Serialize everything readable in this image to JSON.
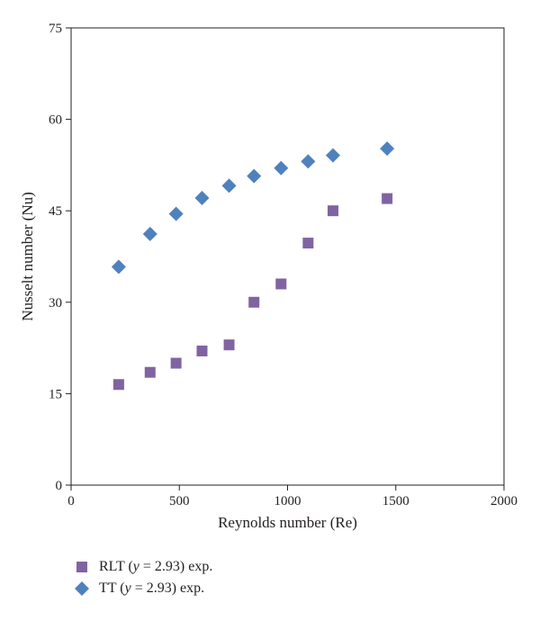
{
  "chart_data": {
    "type": "scatter",
    "xlabel": "Reynolds number (Re)",
    "ylabel": "Nusselt number (Nu)",
    "xlim": [
      0,
      2000
    ],
    "ylim": [
      0,
      75
    ],
    "xticks": [
      0,
      500,
      1000,
      1500,
      2000
    ],
    "yticks": [
      0,
      15,
      30,
      45,
      60,
      75
    ],
    "grid": false,
    "legend_position": "bottom-left",
    "series": [
      {
        "name": "RLT (y = 2.93) exp.",
        "name_prefix": "RLT (",
        "name_var": "y",
        "name_suffix": " = 2.93) exp.",
        "marker": "square",
        "color": "#8064a2",
        "x": [
          220,
          365,
          485,
          605,
          730,
          845,
          970,
          1095,
          1210,
          1460
        ],
        "y": [
          16.5,
          18.5,
          20.0,
          22.0,
          23.0,
          30.0,
          33.0,
          39.7,
          45.0,
          47.0
        ]
      },
      {
        "name": "TT (y = 2.93) exp.",
        "name_prefix": "TT (",
        "name_var": "y",
        "name_suffix": " = 2.93) exp.",
        "marker": "diamond",
        "color": "#4f81bd",
        "x": [
          220,
          365,
          485,
          605,
          730,
          845,
          970,
          1095,
          1210,
          1460
        ],
        "y": [
          35.8,
          41.2,
          44.5,
          47.1,
          49.1,
          50.7,
          52.0,
          53.1,
          54.1,
          55.2
        ]
      }
    ]
  }
}
